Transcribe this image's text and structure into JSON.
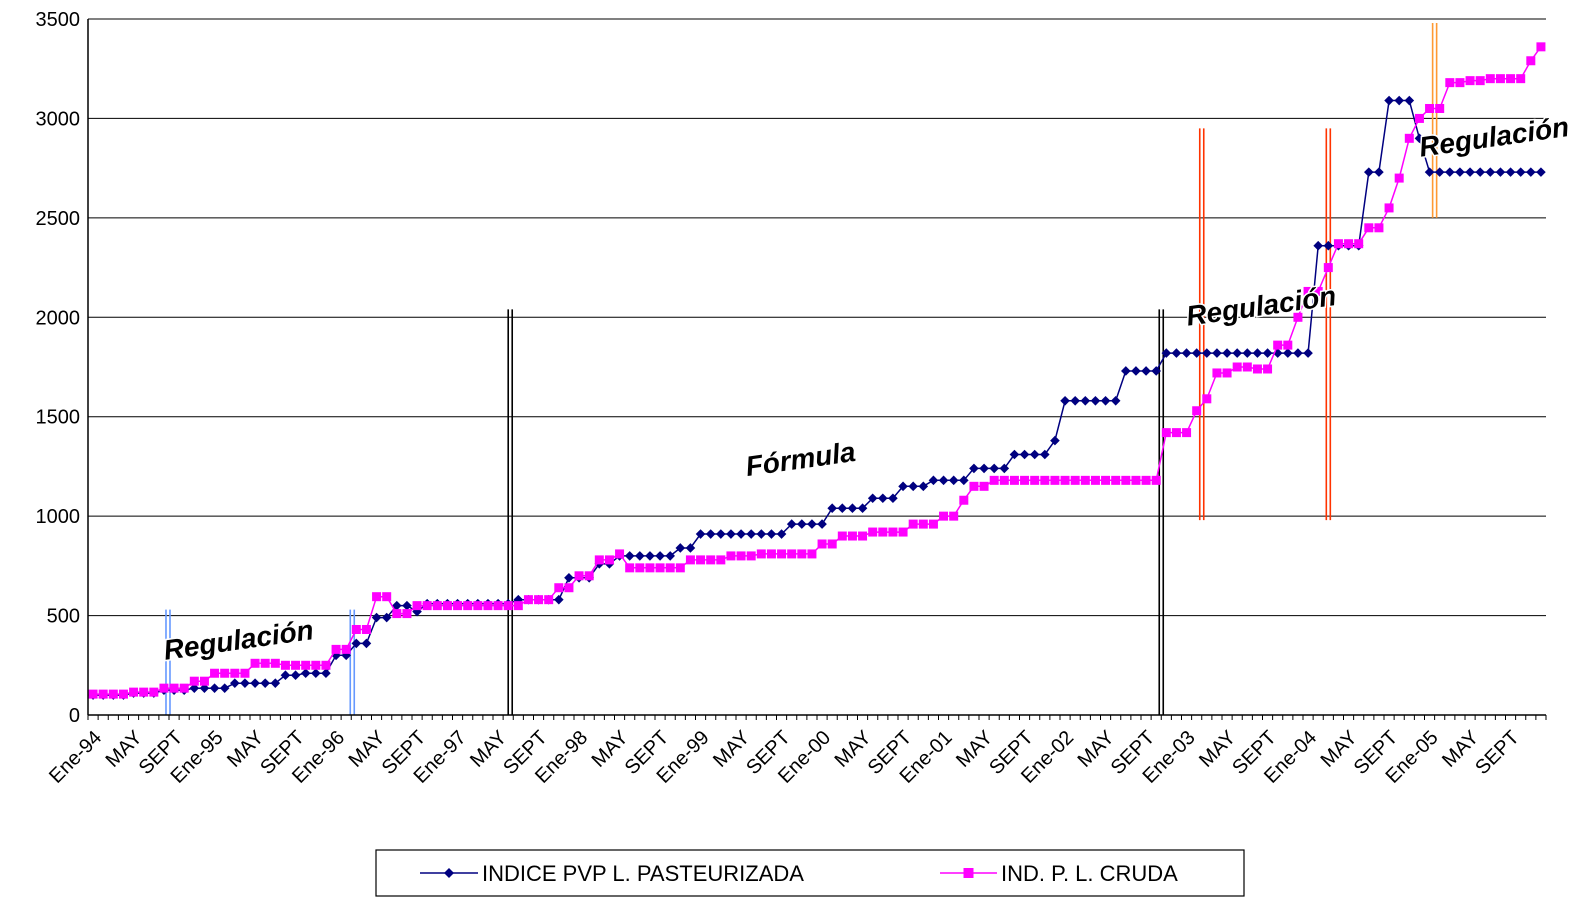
{
  "chart_data": {
    "type": "line",
    "title": "",
    "xlabel": "",
    "ylabel": "",
    "ylim": [
      0,
      3500
    ],
    "yticks": [
      0,
      500,
      1000,
      1500,
      2000,
      2500,
      3000,
      3500
    ],
    "grid": "horizontal",
    "legend": "bottom-center",
    "n_points": 144,
    "x_tick_labels": [
      {
        "index": 0,
        "label": "Ene-94"
      },
      {
        "index": 4,
        "label": "MAY"
      },
      {
        "index": 8,
        "label": "SEPT"
      },
      {
        "index": 12,
        "label": "Ene-95"
      },
      {
        "index": 16,
        "label": "MAY"
      },
      {
        "index": 20,
        "label": "SEPT"
      },
      {
        "index": 24,
        "label": "Ene-96"
      },
      {
        "index": 28,
        "label": "MAY"
      },
      {
        "index": 32,
        "label": "SEPT"
      },
      {
        "index": 36,
        "label": "Ene-97"
      },
      {
        "index": 40,
        "label": "MAY"
      },
      {
        "index": 44,
        "label": "SEPT"
      },
      {
        "index": 48,
        "label": "Ene-98"
      },
      {
        "index": 52,
        "label": "MAY"
      },
      {
        "index": 56,
        "label": "SEPT"
      },
      {
        "index": 60,
        "label": "Ene-99"
      },
      {
        "index": 64,
        "label": "MAY"
      },
      {
        "index": 68,
        "label": "SEPT"
      },
      {
        "index": 72,
        "label": "Ene-00"
      },
      {
        "index": 76,
        "label": "MAY"
      },
      {
        "index": 80,
        "label": "SEPT"
      },
      {
        "index": 84,
        "label": "Ene-01"
      },
      {
        "index": 88,
        "label": "MAY"
      },
      {
        "index": 92,
        "label": "SEPT"
      },
      {
        "index": 96,
        "label": "Ene-02"
      },
      {
        "index": 100,
        "label": "MAY"
      },
      {
        "index": 104,
        "label": "SEPT"
      },
      {
        "index": 108,
        "label": "Ene-03"
      },
      {
        "index": 112,
        "label": "MAY"
      },
      {
        "index": 116,
        "label": "SEPT"
      },
      {
        "index": 120,
        "label": "Ene-04"
      },
      {
        "index": 124,
        "label": "MAY"
      },
      {
        "index": 128,
        "label": "SEPT"
      },
      {
        "index": 132,
        "label": "Ene-05"
      },
      {
        "index": 136,
        "label": "MAY"
      },
      {
        "index": 140,
        "label": "SEPT"
      }
    ],
    "series": [
      {
        "name": "INDICE PVP L. PASTEURIZADA",
        "color": "#000080",
        "marker": "diamond",
        "segments": [
          {
            "from": 0,
            "to": 3,
            "value": 100
          },
          {
            "from": 4,
            "to": 6,
            "value": 110
          },
          {
            "from": 7,
            "to": 9,
            "value": 125
          },
          {
            "from": 10,
            "to": 13,
            "value": 135
          },
          {
            "from": 14,
            "to": 18,
            "value": 160
          },
          {
            "from": 19,
            "to": 20,
            "value": 200
          },
          {
            "from": 21,
            "to": 23,
            "value": 210
          },
          {
            "from": 24,
            "to": 25,
            "value": 300
          },
          {
            "from": 26,
            "to": 27,
            "value": 360
          },
          {
            "from": 28,
            "to": 29,
            "value": 490
          },
          {
            "from": 30,
            "to": 31,
            "value": 550
          },
          {
            "from": 32,
            "to": 32,
            "value": 520
          },
          {
            "from": 33,
            "to": 41,
            "value": 560
          },
          {
            "from": 42,
            "to": 42,
            "value": 580
          },
          {
            "from": 43,
            "to": 46,
            "value": 580
          },
          {
            "from": 47,
            "to": 49,
            "value": 690
          },
          {
            "from": 50,
            "to": 51,
            "value": 760
          },
          {
            "from": 52,
            "to": 57,
            "value": 800
          },
          {
            "from": 58,
            "to": 59,
            "value": 840
          },
          {
            "from": 60,
            "to": 68,
            "value": 910
          },
          {
            "from": 69,
            "to": 72,
            "value": 960
          },
          {
            "from": 73,
            "to": 76,
            "value": 1040
          },
          {
            "from": 77,
            "to": 79,
            "value": 1090
          },
          {
            "from": 80,
            "to": 82,
            "value": 1150
          },
          {
            "from": 83,
            "to": 86,
            "value": 1180
          },
          {
            "from": 87,
            "to": 90,
            "value": 1240
          },
          {
            "from": 91,
            "to": 94,
            "value": 1310
          },
          {
            "from": 95,
            "to": 95,
            "value": 1380
          },
          {
            "from": 96,
            "to": 101,
            "value": 1580
          },
          {
            "from": 102,
            "to": 105,
            "value": 1730
          },
          {
            "from": 106,
            "to": 120,
            "value": 1820
          },
          {
            "from": 121,
            "to": 125,
            "value": 2360
          },
          {
            "from": 126,
            "to": 127,
            "value": 2730
          },
          {
            "from": 128,
            "to": 130,
            "value": 3090
          },
          {
            "from": 131,
            "to": 131,
            "value": 2900
          },
          {
            "from": 132,
            "to": 143,
            "value": 2730
          }
        ]
      },
      {
        "name": "IND. P. L. CRUDA",
        "color": "#ff00ff",
        "marker": "square",
        "segments": [
          {
            "from": 0,
            "to": 3,
            "value": 105
          },
          {
            "from": 4,
            "to": 6,
            "value": 115
          },
          {
            "from": 7,
            "to": 9,
            "value": 135
          },
          {
            "from": 10,
            "to": 11,
            "value": 170
          },
          {
            "from": 12,
            "to": 15,
            "value": 210
          },
          {
            "from": 16,
            "to": 18,
            "value": 260
          },
          {
            "from": 19,
            "to": 23,
            "value": 250
          },
          {
            "from": 24,
            "to": 25,
            "value": 330
          },
          {
            "from": 26,
            "to": 27,
            "value": 430
          },
          {
            "from": 28,
            "to": 29,
            "value": 595
          },
          {
            "from": 30,
            "to": 31,
            "value": 510
          },
          {
            "from": 32,
            "to": 42,
            "value": 550
          },
          {
            "from": 43,
            "to": 45,
            "value": 580
          },
          {
            "from": 46,
            "to": 47,
            "value": 640
          },
          {
            "from": 48,
            "to": 49,
            "value": 700
          },
          {
            "from": 50,
            "to": 51,
            "value": 780
          },
          {
            "from": 52,
            "to": 52,
            "value": 810
          },
          {
            "from": 53,
            "to": 58,
            "value": 740
          },
          {
            "from": 59,
            "to": 62,
            "value": 780
          },
          {
            "from": 63,
            "to": 65,
            "value": 800
          },
          {
            "from": 66,
            "to": 71,
            "value": 810
          },
          {
            "from": 72,
            "to": 73,
            "value": 860
          },
          {
            "from": 74,
            "to": 76,
            "value": 900
          },
          {
            "from": 77,
            "to": 80,
            "value": 920
          },
          {
            "from": 81,
            "to": 83,
            "value": 960
          },
          {
            "from": 84,
            "to": 85,
            "value": 1000
          },
          {
            "from": 86,
            "to": 86,
            "value": 1080
          },
          {
            "from": 87,
            "to": 88,
            "value": 1150
          },
          {
            "from": 89,
            "to": 105,
            "value": 1180
          },
          {
            "from": 106,
            "to": 108,
            "value": 1420
          },
          {
            "from": 109,
            "to": 109,
            "value": 1530
          },
          {
            "from": 110,
            "to": 110,
            "value": 1590
          },
          {
            "from": 111,
            "to": 112,
            "value": 1720
          },
          {
            "from": 113,
            "to": 114,
            "value": 1750
          },
          {
            "from": 115,
            "to": 116,
            "value": 1740
          },
          {
            "from": 117,
            "to": 118,
            "value": 1860
          },
          {
            "from": 119,
            "to": 119,
            "value": 2000
          },
          {
            "from": 120,
            "to": 121,
            "value": 2130
          },
          {
            "from": 122,
            "to": 122,
            "value": 2250
          },
          {
            "from": 123,
            "to": 125,
            "value": 2370
          },
          {
            "from": 126,
            "to": 127,
            "value": 2450
          },
          {
            "from": 128,
            "to": 128,
            "value": 2550
          },
          {
            "from": 129,
            "to": 129,
            "value": 2700
          },
          {
            "from": 130,
            "to": 130,
            "value": 2900
          },
          {
            "from": 131,
            "to": 131,
            "value": 3000
          },
          {
            "from": 132,
            "to": 133,
            "value": 3050
          },
          {
            "from": 134,
            "to": 135,
            "value": 3180
          },
          {
            "from": 136,
            "to": 137,
            "value": 3190
          },
          {
            "from": 138,
            "to": 141,
            "value": 3200
          },
          {
            "from": 142,
            "to": 142,
            "value": 3290
          },
          {
            "from": 143,
            "to": 143,
            "value": 3360
          }
        ]
      }
    ],
    "vertical_markers": [
      {
        "name": "marker-blue-1",
        "at": 7.4,
        "ymin": 0,
        "ymax": 530,
        "color": "#6699ff"
      },
      {
        "name": "marker-blue-2",
        "at": 25.6,
        "ymin": 0,
        "ymax": 530,
        "color": "#6699ff"
      },
      {
        "name": "marker-black-1",
        "at": 41.2,
        "ymin": 0,
        "ymax": 2040,
        "color": "#000000"
      },
      {
        "name": "marker-black-2",
        "at": 105.5,
        "ymin": 0,
        "ymax": 2040,
        "color": "#000000"
      },
      {
        "name": "marker-red-1",
        "at": 109.5,
        "ymin": 980,
        "ymax": 2950,
        "color": "#ff3300"
      },
      {
        "name": "marker-red-2",
        "at": 122.0,
        "ymin": 980,
        "ymax": 2950,
        "color": "#ff3300"
      },
      {
        "name": "marker-orange-1",
        "at": 132.5,
        "ymin": 2500,
        "ymax": 3480,
        "color": "#ff9933"
      }
    ],
    "annotations": [
      {
        "name": "annotation-regulacion-1",
        "text": "Regulación",
        "at": 14.5,
        "y": 330
      },
      {
        "name": "annotation-formula",
        "text": "Fórmula",
        "at": 70,
        "y": 1240
      },
      {
        "name": "annotation-regulacion-2",
        "text": "Regulación",
        "at": 115.5,
        "y": 2010
      },
      {
        "name": "annotation-regulacion-3",
        "text": "Regulación",
        "at": 138.5,
        "y": 2860
      }
    ]
  }
}
